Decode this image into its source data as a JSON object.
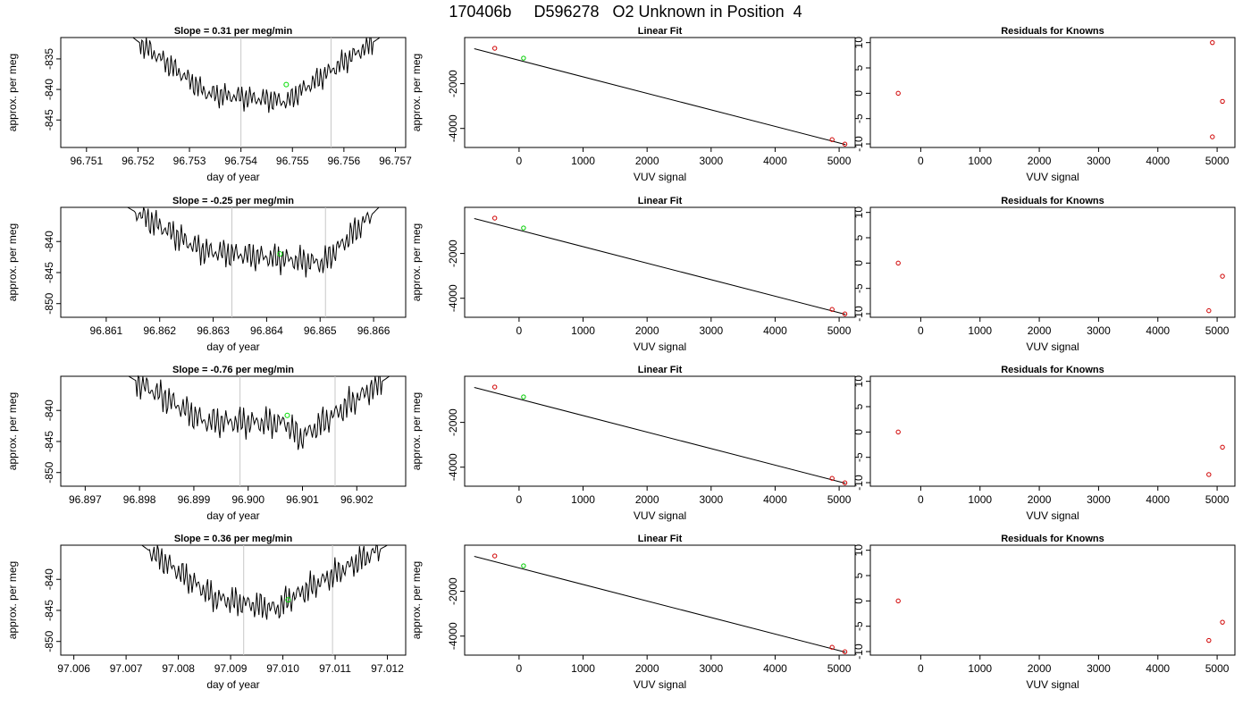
{
  "header": {
    "title": "170406b     D596278   O2 Unknown in Position  4"
  },
  "chart_data": [
    {
      "type": "line",
      "title": "Slope =  0.31  per meg/min",
      "xlabel": "day of year",
      "ylabel": "approx. per meg",
      "xlim": [
        96.7505,
        96.7572
      ],
      "ylim": [
        -849.5,
        -831.5
      ],
      "xticks": [
        "96.751",
        "96.752",
        "96.753",
        "96.754",
        "96.755",
        "96.756",
        "96.757"
      ],
      "yticks": [
        "-835",
        "-840",
        "-845"
      ],
      "x": [
        96.7519,
        96.75335,
        96.7549,
        96.75515,
        96.7567
      ],
      "y": [
        -831.5,
        -840.7,
        -842.0,
        -840.3,
        -831.5
      ],
      "window_lines": [
        96.754,
        96.75575
      ],
      "green_point": {
        "x": 96.75488,
        "y": -839.2
      },
      "noise_amplitude": 1.2
    },
    {
      "type": "scatter",
      "title": "Linear Fit",
      "xlabel": "VUV signal",
      "ylabel": "approx. per meg",
      "xlim": [
        -850,
        5250
      ],
      "ylim": [
        -4850,
        60
      ],
      "xticks": [
        "0",
        "1000",
        "2000",
        "3000",
        "4000",
        "5000"
      ],
      "yticks": [
        "-2000",
        "-4000"
      ],
      "fit_line": {
        "x": [
          -700,
          5100
        ],
        "y": [
          -440,
          -4720
        ]
      },
      "known_points": {
        "x": [
          -380,
          4890,
          5090
        ],
        "y": [
          -420,
          -4500,
          -4700
        ]
      },
      "unknown_point": {
        "x": 70,
        "y": -860
      }
    },
    {
      "type": "scatter",
      "title": "Residuals for Knowns",
      "xlabel": "VUV signal",
      "ylabel": "",
      "xlim": [
        -850,
        5300
      ],
      "ylim": [
        -10.7,
        11
      ],
      "xticks": [
        "0",
        "1000",
        "2000",
        "3000",
        "4000",
        "5000"
      ],
      "yticks": [
        "10",
        "5",
        "0",
        "-5",
        "-10"
      ],
      "x": [
        -380,
        4920,
        4920,
        5090
      ],
      "y": [
        0,
        10,
        -8.6,
        -1.6
      ]
    },
    {
      "type": "line",
      "title": "Slope =  -0.25  per meg/min",
      "xlabel": "day of year",
      "ylabel": "approx. per meg",
      "xlim": [
        96.86015,
        96.8666
      ],
      "ylim": [
        -852.2,
        -834.5
      ],
      "xticks": [
        "96.861",
        "96.862",
        "96.863",
        "96.864",
        "96.865",
        "96.866"
      ],
      "yticks": [
        "-840",
        "-845",
        "-850"
      ],
      "x": [
        96.8614,
        96.8628,
        96.8643,
        96.86505,
        96.8661
      ],
      "y": [
        -834.5,
        -841.5,
        -842.8,
        -843.5,
        -834.5
      ],
      "window_lines": [
        96.86335,
        96.8651
      ],
      "green_point": {
        "x": 96.86425,
        "y": -842.0
      },
      "noise_amplitude": 1.4
    },
    {
      "type": "scatter",
      "title": "Linear Fit",
      "xlabel": "VUV signal",
      "ylabel": "approx. per meg",
      "xlim": [
        -850,
        5250
      ],
      "ylim": [
        -4850,
        60
      ],
      "xticks": [
        "0",
        "1000",
        "2000",
        "3000",
        "4000",
        "5000"
      ],
      "yticks": [
        "-2000",
        "-4000"
      ],
      "fit_line": {
        "x": [
          -700,
          5100
        ],
        "y": [
          -440,
          -4720
        ]
      },
      "known_points": {
        "x": [
          -380,
          4890,
          5090
        ],
        "y": [
          -420,
          -4500,
          -4700
        ]
      },
      "unknown_point": {
        "x": 70,
        "y": -860
      }
    },
    {
      "type": "scatter",
      "title": "Residuals for Knowns",
      "xlabel": "VUV signal",
      "ylabel": "",
      "xlim": [
        -850,
        5300
      ],
      "ylim": [
        -10.7,
        11
      ],
      "xticks": [
        "0",
        "1000",
        "2000",
        "3000",
        "4000",
        "5000"
      ],
      "yticks": [
        "10",
        "5",
        "0",
        "-5",
        "-10"
      ],
      "x": [
        -380,
        4860,
        5090
      ],
      "y": [
        0,
        -9.4,
        -2.6
      ]
    },
    {
      "type": "line",
      "title": "Slope =  -0.76  per meg/min",
      "xlabel": "day of year",
      "ylabel": "approx. per meg",
      "xlim": [
        96.89655,
        96.9029
      ],
      "ylim": [
        -852.2,
        -834.5
      ],
      "xticks": [
        "96.897",
        "96.898",
        "96.899",
        "96.900",
        "96.901",
        "96.902"
      ],
      "yticks": [
        "-840",
        "-845",
        "-850"
      ],
      "x": [
        96.8978,
        96.8992,
        96.9007,
        96.90095,
        96.9026
      ],
      "y": [
        -834.5,
        -841.8,
        -842.0,
        -844.5,
        -834.5
      ],
      "window_lines": [
        96.89985,
        96.9016
      ],
      "green_point": {
        "x": 96.90072,
        "y": -840.8
      },
      "noise_amplitude": 1.5
    },
    {
      "type": "scatter",
      "title": "Linear Fit",
      "xlabel": "VUV signal",
      "ylabel": "approx. per meg",
      "xlim": [
        -850,
        5250
      ],
      "ylim": [
        -4850,
        60
      ],
      "xticks": [
        "0",
        "1000",
        "2000",
        "3000",
        "4000",
        "5000"
      ],
      "yticks": [
        "-2000",
        "-4000"
      ],
      "fit_line": {
        "x": [
          -700,
          5100
        ],
        "y": [
          -440,
          -4720
        ]
      },
      "known_points": {
        "x": [
          -380,
          4890,
          5090
        ],
        "y": [
          -420,
          -4500,
          -4700
        ]
      },
      "unknown_point": {
        "x": 70,
        "y": -860
      }
    },
    {
      "type": "scatter",
      "title": "Residuals for Knowns",
      "xlabel": "VUV signal",
      "ylabel": "",
      "xlim": [
        -850,
        5300
      ],
      "ylim": [
        -10.7,
        11
      ],
      "xticks": [
        "0",
        "1000",
        "2000",
        "3000",
        "4000",
        "5000"
      ],
      "yticks": [
        "10",
        "5",
        "0",
        "-5",
        "-10"
      ],
      "x": [
        -380,
        4860,
        5090
      ],
      "y": [
        0,
        -8.4,
        -3.0
      ]
    },
    {
      "type": "line",
      "title": "Slope =  0.36  per meg/min",
      "xlabel": "day of year",
      "ylabel": "approx. per meg",
      "xlim": [
        97.00575,
        97.01235
      ],
      "ylim": [
        -852.2,
        -834.5
      ],
      "xticks": [
        "97.006",
        "97.007",
        "97.008",
        "97.009",
        "97.010",
        "97.011",
        "97.012"
      ],
      "yticks": [
        "-840",
        "-845",
        "-850"
      ],
      "x": [
        97.0073,
        97.0087,
        97.0099,
        97.01005,
        97.012
      ],
      "y": [
        -834.5,
        -843.0,
        -844.8,
        -843.5,
        -834.5
      ],
      "window_lines": [
        97.00925,
        97.01095
      ],
      "green_point": {
        "x": 97.0101,
        "y": -843.3
      },
      "noise_amplitude": 1.4
    },
    {
      "type": "scatter",
      "title": "Linear Fit",
      "xlabel": "VUV signal",
      "ylabel": "approx. per meg",
      "xlim": [
        -850,
        5250
      ],
      "ylim": [
        -4850,
        60
      ],
      "xticks": [
        "0",
        "1000",
        "2000",
        "3000",
        "4000",
        "5000"
      ],
      "yticks": [
        "-2000",
        "-4000"
      ],
      "fit_line": {
        "x": [
          -700,
          5100
        ],
        "y": [
          -440,
          -4720
        ]
      },
      "known_points": {
        "x": [
          -380,
          4890,
          5090
        ],
        "y": [
          -420,
          -4500,
          -4700
        ]
      },
      "unknown_point": {
        "x": 70,
        "y": -860
      }
    },
    {
      "type": "scatter",
      "title": "Residuals for Knowns",
      "xlabel": "VUV signal",
      "ylabel": "",
      "xlim": [
        -850,
        5300
      ],
      "ylim": [
        -10.7,
        11
      ],
      "xticks": [
        "0",
        "1000",
        "2000",
        "3000",
        "4000",
        "5000"
      ],
      "yticks": [
        "10",
        "5",
        "0",
        "-5",
        "-10"
      ],
      "x": [
        -380,
        4860,
        5090
      ],
      "y": [
        0,
        -7.8,
        -4.2
      ]
    }
  ]
}
